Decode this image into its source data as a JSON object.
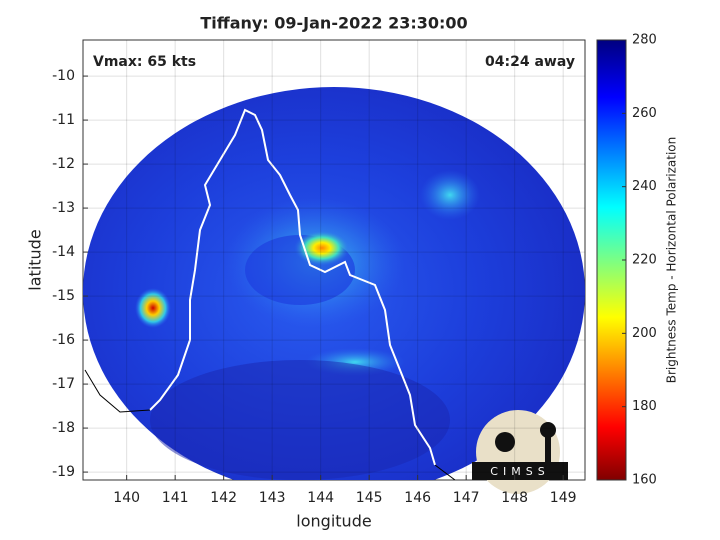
{
  "chart_data": {
    "type": "image-map",
    "title": "Tiffany: 09-Jan-2022 23:30:00",
    "annotation_left": "Vmax: 65 kts",
    "annotation_right": "04:24 away",
    "x_label": "longitude",
    "y_label": "latitude",
    "xlim": [
      139.1,
      149.45
    ],
    "ylim": [
      -19.18,
      -9.18
    ],
    "xticks": [
      140,
      141,
      142,
      143,
      144,
      145,
      146,
      147,
      148,
      149
    ],
    "yticks": [
      -19,
      -18,
      -17,
      -16,
      -15,
      -14,
      -13,
      -12,
      -11,
      -10
    ],
    "grid": true,
    "colorbar": {
      "label": "Brightness Temp - Horizontal Polarization",
      "clim": [
        160,
        280
      ],
      "ticks": [
        160,
        180,
        200,
        220,
        240,
        260,
        280
      ],
      "colormap": "jet"
    },
    "logo": "CIMSS"
  }
}
